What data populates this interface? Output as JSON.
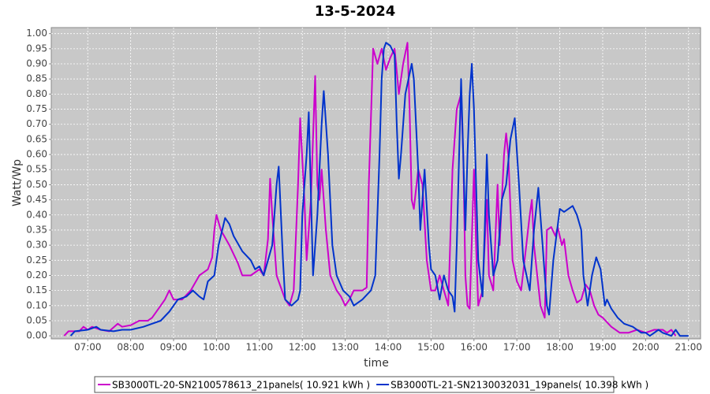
{
  "chart_data": {
    "type": "line",
    "title": "13-5-2024",
    "xlabel": "time",
    "ylabel": "Watt/Wp",
    "xlim": [
      6.15,
      21.28
    ],
    "ylim": [
      -0.01,
      1.02
    ],
    "grid": true,
    "legend": "bottom",
    "xticks": [
      {
        "value": 7,
        "label": "07:00"
      },
      {
        "value": 8,
        "label": "08:00"
      },
      {
        "value": 9,
        "label": "09:00"
      },
      {
        "value": 10,
        "label": "10:00"
      },
      {
        "value": 11,
        "label": "11:00"
      },
      {
        "value": 12,
        "label": "12:00"
      },
      {
        "value": 13,
        "label": "13:00"
      },
      {
        "value": 14,
        "label": "14:00"
      },
      {
        "value": 15,
        "label": "15:00"
      },
      {
        "value": 16,
        "label": "16:00"
      },
      {
        "value": 17,
        "label": "17:00"
      },
      {
        "value": 18,
        "label": "18:00"
      },
      {
        "value": 19,
        "label": "19:00"
      },
      {
        "value": 20,
        "label": "20:00"
      },
      {
        "value": 21,
        "label": "21:00"
      }
    ],
    "yticks": [
      {
        "value": 0,
        "label": "0.00"
      },
      {
        "value": 0.05,
        "label": "0.05"
      },
      {
        "value": 0.1,
        "label": "0.10"
      },
      {
        "value": 0.15,
        "label": "0.15"
      },
      {
        "value": 0.2,
        "label": "0.20"
      },
      {
        "value": 0.25,
        "label": "0.25"
      },
      {
        "value": 0.3,
        "label": "0.30"
      },
      {
        "value": 0.35,
        "label": "0.35"
      },
      {
        "value": 0.4,
        "label": "0.40"
      },
      {
        "value": 0.45,
        "label": "0.45"
      },
      {
        "value": 0.5,
        "label": "0.50"
      },
      {
        "value": 0.55,
        "label": "0.55"
      },
      {
        "value": 0.6,
        "label": "0.60"
      },
      {
        "value": 0.65,
        "label": "0.65"
      },
      {
        "value": 0.7,
        "label": "0.70"
      },
      {
        "value": 0.75,
        "label": "0.75"
      },
      {
        "value": 0.8,
        "label": "0.80"
      },
      {
        "value": 0.85,
        "label": "0.85"
      },
      {
        "value": 0.9,
        "label": "0.90"
      },
      {
        "value": 0.95,
        "label": "0.95"
      },
      {
        "value": 1,
        "label": "1.00"
      }
    ],
    "series": [
      {
        "name": "SB3000TL-20-SN2100578613_21panels( 10.921 kWh )",
        "color": "#cc00cc",
        "x": [
          6.45,
          6.55,
          6.8,
          6.9,
          7.0,
          7.1,
          7.3,
          7.5,
          7.7,
          7.8,
          8.0,
          8.2,
          8.4,
          8.5,
          8.7,
          8.8,
          8.9,
          9.0,
          9.2,
          9.4,
          9.6,
          9.8,
          9.9,
          9.95,
          10.0,
          10.1,
          10.3,
          10.5,
          10.6,
          10.8,
          11.0,
          11.1,
          11.2,
          11.25,
          11.3,
          11.4,
          11.6,
          11.7,
          11.8,
          11.9,
          11.95,
          12.05,
          12.1,
          12.2,
          12.3,
          12.35,
          12.4,
          12.45,
          12.55,
          12.65,
          12.8,
          12.9,
          13.0,
          13.1,
          13.2,
          13.3,
          13.4,
          13.5,
          13.55,
          13.65,
          13.75,
          13.85,
          13.95,
          14.05,
          14.15,
          14.25,
          14.35,
          14.45,
          14.5,
          14.55,
          14.6,
          14.7,
          14.8,
          14.9,
          15.0,
          15.1,
          15.2,
          15.3,
          15.4,
          15.5,
          15.6,
          15.7,
          15.75,
          15.8,
          15.85,
          15.9,
          16.0,
          16.05,
          16.1,
          16.2,
          16.3,
          16.35,
          16.45,
          16.55,
          16.6,
          16.7,
          16.75,
          16.8,
          16.9,
          17.0,
          17.1,
          17.3,
          17.35,
          17.4,
          17.55,
          17.65,
          17.7,
          17.8,
          17.9,
          17.95,
          18.05,
          18.1,
          18.2,
          18.3,
          18.4,
          18.5,
          18.6,
          18.7,
          18.8,
          18.9,
          19.0,
          19.2,
          19.4,
          19.6,
          19.8,
          20.0,
          20.2,
          20.4,
          20.5,
          20.6,
          20.7
        ],
        "values": [
          0,
          0.015,
          0.015,
          0.03,
          0.02,
          0.03,
          0.02,
          0.015,
          0.04,
          0.03,
          0.035,
          0.05,
          0.05,
          0.06,
          0.1,
          0.12,
          0.15,
          0.12,
          0.12,
          0.15,
          0.2,
          0.22,
          0.26,
          0.35,
          0.4,
          0.35,
          0.3,
          0.24,
          0.2,
          0.2,
          0.22,
          0.2,
          0.32,
          0.52,
          0.4,
          0.2,
          0.12,
          0.1,
          0.15,
          0.5,
          0.72,
          0.45,
          0.25,
          0.45,
          0.86,
          0.5,
          0.45,
          0.55,
          0.35,
          0.2,
          0.15,
          0.13,
          0.1,
          0.12,
          0.15,
          0.15,
          0.15,
          0.16,
          0.5,
          0.95,
          0.9,
          0.95,
          0.88,
          0.92,
          0.95,
          0.8,
          0.9,
          0.97,
          0.75,
          0.45,
          0.42,
          0.55,
          0.5,
          0.25,
          0.15,
          0.15,
          0.2,
          0.15,
          0.1,
          0.55,
          0.75,
          0.8,
          0.6,
          0.2,
          0.1,
          0.09,
          0.55,
          0.3,
          0.1,
          0.15,
          0.45,
          0.2,
          0.15,
          0.5,
          0.3,
          0.6,
          0.67,
          0.6,
          0.25,
          0.18,
          0.15,
          0.4,
          0.45,
          0.3,
          0.1,
          0.06,
          0.35,
          0.36,
          0.33,
          0.36,
          0.3,
          0.32,
          0.2,
          0.15,
          0.11,
          0.12,
          0.17,
          0.15,
          0.1,
          0.07,
          0.06,
          0.03,
          0.01,
          0.01,
          0.02,
          0.01,
          0.02,
          0.02,
          0.01,
          0.02,
          0
        ]
      },
      {
        "name": "SB3000TL-21-SN2130032031_19panels( 10.398 kWh )",
        "color": "#0033cc",
        "x": [
          6.6,
          6.7,
          7.0,
          7.2,
          7.3,
          7.6,
          7.8,
          8.0,
          8.3,
          8.5,
          8.7,
          8.9,
          9.1,
          9.3,
          9.45,
          9.6,
          9.7,
          9.8,
          9.95,
          10.05,
          10.15,
          10.2,
          10.3,
          10.4,
          10.6,
          10.8,
          10.9,
          11.0,
          11.1,
          11.2,
          11.3,
          11.4,
          11.45,
          11.55,
          11.6,
          11.75,
          11.9,
          11.95,
          12.0,
          12.1,
          12.15,
          12.25,
          12.35,
          12.45,
          12.5,
          12.6,
          12.7,
          12.8,
          12.95,
          13.1,
          13.2,
          13.4,
          13.6,
          13.7,
          13.8,
          13.85,
          13.9,
          13.95,
          14.05,
          14.15,
          14.2,
          14.25,
          14.3,
          14.4,
          14.55,
          14.6,
          14.7,
          14.75,
          14.85,
          14.95,
          15.0,
          15.1,
          15.2,
          15.3,
          15.4,
          15.5,
          15.55,
          15.6,
          15.7,
          15.75,
          15.8,
          15.85,
          15.9,
          15.95,
          16.0,
          16.1,
          16.2,
          16.25,
          16.3,
          16.35,
          16.45,
          16.55,
          16.65,
          16.75,
          16.85,
          16.95,
          17.05,
          17.15,
          17.3,
          17.4,
          17.5,
          17.6,
          17.7,
          17.75,
          17.85,
          18.0,
          18.1,
          18.2,
          18.3,
          18.4,
          18.5,
          18.55,
          18.65,
          18.75,
          18.85,
          18.95,
          19.05,
          19.1,
          19.2,
          19.35,
          19.5,
          19.7,
          19.9,
          20.0,
          20.1,
          20.3,
          20.4,
          20.6,
          20.7,
          20.8,
          21.0
        ],
        "values": [
          0,
          0.015,
          0.02,
          0.03,
          0.02,
          0.015,
          0.02,
          0.02,
          0.03,
          0.04,
          0.05,
          0.08,
          0.12,
          0.13,
          0.15,
          0.13,
          0.12,
          0.18,
          0.2,
          0.3,
          0.36,
          0.39,
          0.37,
          0.33,
          0.28,
          0.25,
          0.22,
          0.23,
          0.2,
          0.25,
          0.3,
          0.5,
          0.56,
          0.25,
          0.12,
          0.1,
          0.12,
          0.15,
          0.4,
          0.6,
          0.74,
          0.2,
          0.4,
          0.7,
          0.81,
          0.6,
          0.3,
          0.2,
          0.15,
          0.13,
          0.1,
          0.12,
          0.15,
          0.2,
          0.6,
          0.85,
          0.95,
          0.97,
          0.96,
          0.93,
          0.7,
          0.52,
          0.6,
          0.8,
          0.9,
          0.85,
          0.55,
          0.35,
          0.55,
          0.3,
          0.22,
          0.2,
          0.12,
          0.2,
          0.15,
          0.13,
          0.08,
          0.3,
          0.85,
          0.6,
          0.35,
          0.6,
          0.8,
          0.9,
          0.75,
          0.25,
          0.13,
          0.35,
          0.6,
          0.4,
          0.2,
          0.25,
          0.45,
          0.5,
          0.65,
          0.72,
          0.5,
          0.25,
          0.15,
          0.35,
          0.49,
          0.3,
          0.1,
          0.07,
          0.25,
          0.42,
          0.41,
          0.42,
          0.43,
          0.4,
          0.35,
          0.2,
          0.1,
          0.2,
          0.26,
          0.22,
          0.1,
          0.12,
          0.09,
          0.06,
          0.04,
          0.03,
          0.01,
          0.01,
          0,
          0.02,
          0.01,
          0,
          0.02,
          0,
          0
        ]
      }
    ]
  }
}
